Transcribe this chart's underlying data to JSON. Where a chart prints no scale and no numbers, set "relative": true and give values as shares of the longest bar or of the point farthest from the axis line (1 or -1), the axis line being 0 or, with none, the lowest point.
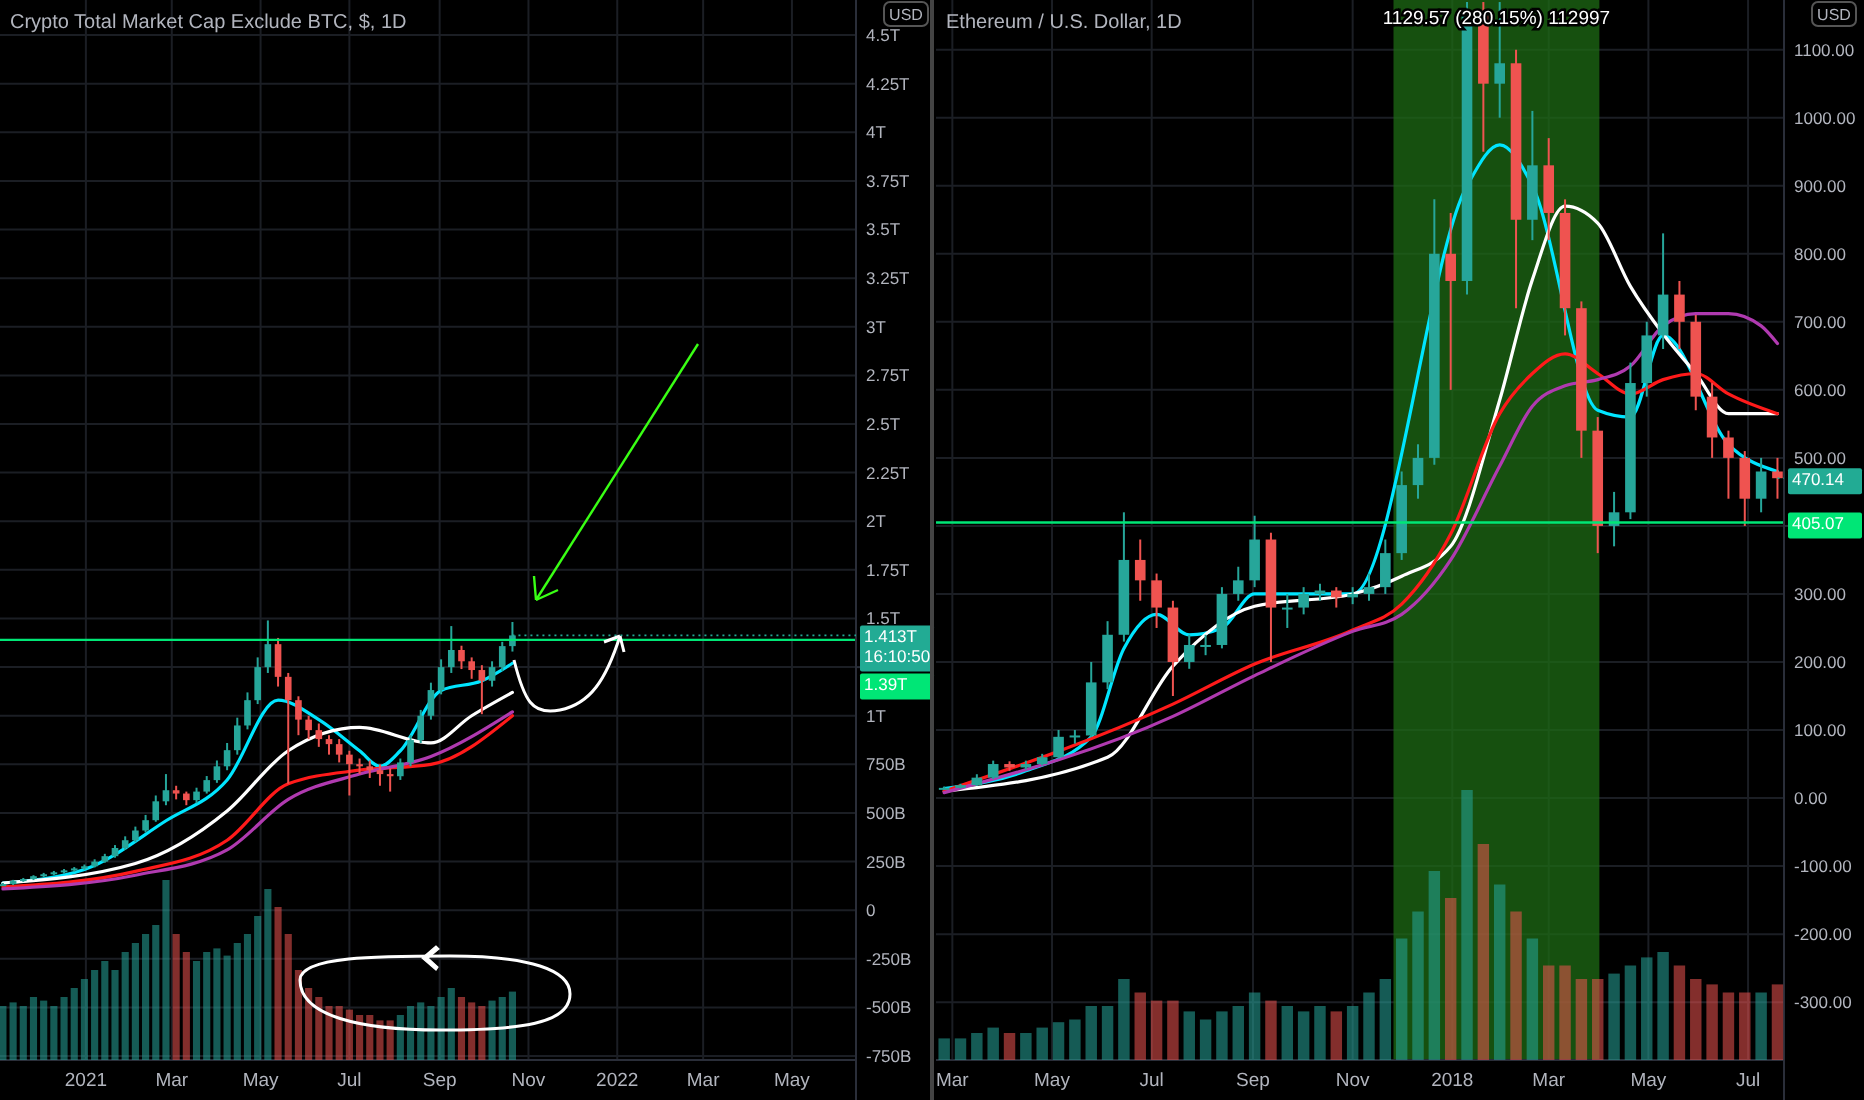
{
  "chart_data": [
    {
      "type": "candlestick",
      "title": "Crypto Total Market Cap Exclude BTC, $, 1D",
      "x": [
        "2020-11-05",
        "2020-11-12",
        "2020-11-19",
        "2020-11-26",
        "2020-12-03",
        "2020-12-10",
        "2020-12-17",
        "2020-12-24",
        "2020-12-31",
        "2021-01-07",
        "2021-01-14",
        "2021-01-21",
        "2021-01-28",
        "2021-02-04",
        "2021-02-11",
        "2021-02-18",
        "2021-02-25",
        "2021-03-04",
        "2021-03-11",
        "2021-03-18",
        "2021-03-25",
        "2021-04-01",
        "2021-04-08",
        "2021-04-15",
        "2021-04-22",
        "2021-04-29",
        "2021-05-06",
        "2021-05-13",
        "2021-05-20",
        "2021-05-27",
        "2021-06-03",
        "2021-06-10",
        "2021-06-17",
        "2021-06-24",
        "2021-07-01",
        "2021-07-08",
        "2021-07-15",
        "2021-07-22",
        "2021-07-29",
        "2021-08-05",
        "2021-08-12",
        "2021-08-19",
        "2021-08-26",
        "2021-09-02",
        "2021-09-09",
        "2021-09-16",
        "2021-09-23",
        "2021-09-30",
        "2021-10-07",
        "2021-10-14",
        "2021-10-21"
      ],
      "ohlc": [
        [
          130000000000.0,
          140000000000.0,
          125000000000.0,
          134000000000.0
        ],
        [
          134000000000.0,
          156000000000.0,
          130000000000.0,
          150000000000.0
        ],
        [
          150000000000.0,
          166000000000.0,
          146000000000.0,
          160000000000.0
        ],
        [
          160000000000.0,
          180000000000.0,
          155000000000.0,
          175000000000.0
        ],
        [
          175000000000.0,
          192000000000.0,
          170000000000.0,
          185000000000.0
        ],
        [
          185000000000.0,
          202000000000.0,
          180000000000.0,
          195000000000.0
        ],
        [
          195000000000.0,
          212000000000.0,
          188000000000.0,
          205000000000.0
        ],
        [
          205000000000.0,
          222000000000.0,
          198000000000.0,
          215000000000.0
        ],
        [
          215000000000.0,
          235000000000.0,
          208000000000.0,
          226000000000.0
        ],
        [
          226000000000.0,
          262000000000.0,
          220000000000.0,
          250000000000.0
        ],
        [
          250000000000.0,
          290000000000.0,
          244000000000.0,
          278000000000.0
        ],
        [
          278000000000.0,
          335000000000.0,
          270000000000.0,
          320000000000.0
        ],
        [
          320000000000.0,
          380000000000.0,
          310000000000.0,
          360000000000.0
        ],
        [
          360000000000.0,
          430000000000.0,
          350000000000.0,
          410000000000.0
        ],
        [
          410000000000.0,
          490000000000.0,
          400000000000.0,
          463000000000.0
        ],
        [
          463000000000.0,
          590000000000.0,
          455000000000.0,
          560000000000.0
        ],
        [
          560000000000.0,
          700000000000.0,
          540000000000.0,
          617000000000.0
        ],
        [
          617000000000.0,
          640000000000.0,
          570000000000.0,
          600000000000.0
        ],
        [
          600000000000.0,
          610000000000.0,
          540000000000.0,
          566000000000.0
        ],
        [
          566000000000.0,
          630000000000.0,
          550000000000.0,
          610000000000.0
        ],
        [
          610000000000.0,
          690000000000.0,
          600000000000.0,
          669000000000.0
        ],
        [
          669000000000.0,
          770000000000.0,
          655000000000.0,
          740000000000.0
        ],
        [
          740000000000.0,
          860000000000.0,
          720000000000.0,
          823000000000.0
        ],
        [
          823000000000.0,
          990000000000.0,
          800000000000.0,
          950000000000.0
        ],
        [
          950000000000.0,
          1120000000000.0,
          930000000000.0,
          1080000000000.0
        ],
        [
          1080000000000.0,
          1300000000000.0,
          1060000000000.0,
          1250000000000.0
        ],
        [
          1250000000000.0,
          1490000000000.0,
          1220000000000.0,
          1368000000000.0
        ],
        [
          1368000000000.0,
          1400000000000.0,
          1150000000000.0,
          1200000000000.0
        ],
        [
          1200000000000.0,
          1220000000000.0,
          650000000000.0,
          1080000000000.0
        ],
        [
          1080000000000.0,
          1100000000000.0,
          900000000000.0,
          980000000000.0
        ],
        [
          980000000000.0,
          1000000000000.0,
          880000000000.0,
          926000000000.0
        ],
        [
          926000000000.0,
          960000000000.0,
          840000000000.0,
          880000000000.0
        ],
        [
          880000000000.0,
          900000000000.0,
          800000000000.0,
          854000000000.0
        ],
        [
          854000000000.0,
          880000000000.0,
          760000000000.0,
          800000000000.0
        ],
        [
          800000000000.0,
          820000000000.0,
          590000000000.0,
          751000000000.0
        ],
        [
          751000000000.0,
          780000000000.0,
          700000000000.0,
          740000000000.0
        ],
        [
          740000000000.0,
          770000000000.0,
          680000000000.0,
          720000000000.0
        ],
        [
          720000000000.0,
          750000000000.0,
          640000000000.0,
          700000000000.0
        ],
        [
          700000000000.0,
          730000000000.0,
          610000000000.0,
          689000000000.0
        ],
        [
          689000000000.0,
          780000000000.0,
          670000000000.0,
          760000000000.0
        ],
        [
          760000000000.0,
          900000000000.0,
          740000000000.0,
          875000000000.0
        ],
        [
          875000000000.0,
          1030000000000.0,
          860000000000.0,
          1000000000000.0
        ],
        [
          1000000000000.0,
          1170000000000.0,
          980000000000.0,
          1132000000000.0
        ],
        [
          1132000000000.0,
          1290000000000.0,
          1110000000000.0,
          1250000000000.0
        ],
        [
          1250000000000.0,
          1461000000000.0,
          1220000000000.0,
          1338000000000.0
        ],
        [
          1338000000000.0,
          1360000000000.0,
          1240000000000.0,
          1280000000000.0
        ],
        [
          1280000000000.0,
          1300000000000.0,
          1190000000000.0,
          1235000000000.0
        ],
        [
          1235000000000.0,
          1260000000000.0,
          1008000000000.0,
          1180000000000.0
        ],
        [
          1180000000000.0,
          1280000000000.0,
          1150000000000.0,
          1250000000000.0
        ],
        [
          1250000000000.0,
          1380000000000.0,
          1230000000000.0,
          1358000000000.0
        ],
        [
          1358000000000.0,
          1482000000000.0,
          1330000000000.0,
          1413000000000.0
        ]
      ],
      "colors": [
        "#26a69a",
        "#26a69a",
        "#26a69a",
        "#26a69a",
        "#26a69a",
        "#26a69a",
        "#26a69a",
        "#26a69a",
        "#26a69a",
        "#26a69a",
        "#26a69a",
        "#26a69a",
        "#26a69a",
        "#26a69a",
        "#26a69a",
        "#26a69a",
        "#26a69a",
        "#ef5350",
        "#ef5350",
        "#26a69a",
        "#26a69a",
        "#26a69a",
        "#26a69a",
        "#26a69a",
        "#26a69a",
        "#26a69a",
        "#26a69a",
        "#ef5350",
        "#ef5350",
        "#ef5350",
        "#ef5350",
        "#ef5350",
        "#ef5350",
        "#ef5350",
        "#ef5350",
        "#ef5350",
        "#ef5350",
        "#ef5350",
        "#ef5350",
        "#26a69a",
        "#26a69a",
        "#26a69a",
        "#26a69a",
        "#26a69a",
        "#26a69a",
        "#ef5350",
        "#ef5350",
        "#ef5350",
        "#26a69a",
        "#26a69a",
        "#26a69a"
      ],
      "series": [
        {
          "type": "line",
          "color": "#00e5ff",
          "x": [
            "2020-11-05",
            "2020-12-31",
            "2021-02-25",
            "2021-04-08",
            "2021-05-13",
            "2021-06-10",
            "2021-07-08",
            "2021-07-22",
            "2021-08-05",
            "2021-09-02",
            "2021-09-30",
            "2021-10-21"
          ],
          "values": [
            140000000000.0,
            210000000000.0,
            460000000000.0,
            670000000000.0,
            1080000000000.0,
            980000000000.0,
            820000000000.0,
            740000000000.0,
            820000000000.0,
            1130000000000.0,
            1180000000000.0,
            1270000000000.0
          ]
        },
        {
          "type": "line",
          "color": "#ffffff",
          "x": [
            "2020-11-05",
            "2021-02-04",
            "2021-04-08",
            "2021-05-20",
            "2021-07-08",
            "2021-08-26",
            "2021-09-23",
            "2021-10-21"
          ],
          "values": [
            140000000000.0,
            240000000000.0,
            510000000000.0,
            820000000000.0,
            940000000000.0,
            860000000000.0,
            1000000000000.0,
            1120000000000.0
          ]
        },
        {
          "type": "line",
          "color": "#ff1a1a",
          "x": [
            "2020-11-05",
            "2021-02-04",
            "2021-04-08",
            "2021-05-20",
            "2021-07-08",
            "2021-08-26",
            "2021-10-21"
          ],
          "values": [
            120000000000.0,
            200000000000.0,
            360000000000.0,
            650000000000.0,
            720000000000.0,
            750000000000.0,
            1000000000000.0
          ]
        },
        {
          "type": "line",
          "color": "#b03ab0",
          "x": [
            "2020-11-05",
            "2021-02-04",
            "2021-04-08",
            "2021-05-20",
            "2021-07-08",
            "2021-08-26",
            "2021-10-21"
          ],
          "values": [
            110000000000.0,
            180000000000.0,
            310000000000.0,
            570000000000.0,
            700000000000.0,
            790000000000.0,
            1020000000000.0
          ]
        }
      ],
      "xlim": [
        "2020-11-03",
        "2022-06-14"
      ],
      "xticks": [
        {
          "value": "2021-01-01",
          "label": "2021"
        },
        {
          "value": "2021-03-01",
          "label": "Mar"
        },
        {
          "value": "2021-05-01",
          "label": "May"
        },
        {
          "value": "2021-07-01",
          "label": "Jul"
        },
        {
          "value": "2021-09-01",
          "label": "Sep"
        },
        {
          "value": "2021-11-01",
          "label": "Nov"
        },
        {
          "value": "2022-01-01",
          "label": "2022"
        },
        {
          "value": "2022-03-01",
          "label": "Mar"
        },
        {
          "value": "2022-05-01",
          "label": "May"
        }
      ],
      "ylim": [
        -770000000000.0,
        4680000000000.0
      ],
      "yticks": [
        {
          "value": 4500000000000.0,
          "label": "4.5T"
        },
        {
          "value": 4250000000000.0,
          "label": "4.25T"
        },
        {
          "value": 4000000000000.0,
          "label": "4T"
        },
        {
          "value": 3750000000000.0,
          "label": "3.75T"
        },
        {
          "value": 3500000000000.0,
          "label": "3.5T"
        },
        {
          "value": 3250000000000.0,
          "label": "3.25T"
        },
        {
          "value": 3000000000000.0,
          "label": "3T"
        },
        {
          "value": 2750000000000.0,
          "label": "2.75T"
        },
        {
          "value": 2500000000000.0,
          "label": "2.5T"
        },
        {
          "value": 2250000000000.0,
          "label": "2.25T"
        },
        {
          "value": 2000000000000.0,
          "label": "2T"
        },
        {
          "value": 1750000000000.0,
          "label": "1.75T"
        },
        {
          "value": 1500000000000.0,
          "label": "1.5T"
        },
        {
          "value": 1250000000000.0,
          "label": null
        },
        {
          "value": 1000000000000.0,
          "label": "1T"
        },
        {
          "value": 750000000000.0,
          "label": "750B"
        },
        {
          "value": 500000000000.0,
          "label": "500B"
        },
        {
          "value": 250000000000.0,
          "label": "250B"
        },
        0,
        {
          "value": -250000000000.0,
          "label": "-250B"
        },
        {
          "value": -500000000000.0,
          "label": "-500B"
        },
        {
          "value": -750000000000.0,
          "label": "-750B"
        }
      ],
      "grid": true,
      "ref_lines": [
        {
          "axis": "y",
          "value": 1390000000000.0,
          "label": "1.39T",
          "color": "#00e676"
        }
      ],
      "annotations": [
        "USD",
        {
          "text": "1.413T",
          "x": "2021-10-21",
          "y": 1413000000000.0
        },
        "16:10:50"
      ]
    },
    {
      "type": "bar",
      "relative": true,
      "x": [
        "2020-11-05",
        "2020-11-12",
        "2020-11-19",
        "2020-11-26",
        "2020-12-03",
        "2020-12-10",
        "2020-12-17",
        "2020-12-24",
        "2020-12-31",
        "2021-01-07",
        "2021-01-14",
        "2021-01-21",
        "2021-01-28",
        "2021-02-04",
        "2021-02-11",
        "2021-02-18",
        "2021-02-25",
        "2021-03-04",
        "2021-03-11",
        "2021-03-18",
        "2021-03-25",
        "2021-04-01",
        "2021-04-08",
        "2021-04-15",
        "2021-04-22",
        "2021-04-29",
        "2021-05-06",
        "2021-05-13",
        "2021-05-20",
        "2021-05-27",
        "2021-06-03",
        "2021-06-10",
        "2021-06-17",
        "2021-06-24",
        "2021-07-01",
        "2021-07-08",
        "2021-07-15",
        "2021-07-22",
        "2021-07-29",
        "2021-08-05",
        "2021-08-12",
        "2021-08-19",
        "2021-08-26",
        "2021-09-02",
        "2021-09-09",
        "2021-09-16",
        "2021-09-23",
        "2021-09-30",
        "2021-10-07",
        "2021-10-14",
        "2021-10-21"
      ],
      "xlim": [
        "2020-11-03",
        "2022-06-14"
      ],
      "values": [
        0.3,
        0.32,
        0.3,
        0.35,
        0.33,
        0.3,
        0.35,
        0.4,
        0.45,
        0.5,
        0.55,
        0.5,
        0.6,
        0.65,
        0.7,
        0.75,
        1,
        0.7,
        0.6,
        0.55,
        0.6,
        0.62,
        0.58,
        0.65,
        0.7,
        0.8,
        0.95,
        0.85,
        0.7,
        0.5,
        0.4,
        0.35,
        0.3,
        0.3,
        0.28,
        0.25,
        0.25,
        0.22,
        0.22,
        0.25,
        0.3,
        0.32,
        0.3,
        0.35,
        0.4,
        0.35,
        0.32,
        0.3,
        0.33,
        0.35,
        0.38
      ],
      "colors": [
        "#26a69a",
        "#26a69a",
        "#26a69a",
        "#26a69a",
        "#26a69a",
        "#26a69a",
        "#26a69a",
        "#26a69a",
        "#26a69a",
        "#26a69a",
        "#26a69a",
        "#26a69a",
        "#26a69a",
        "#26a69a",
        "#26a69a",
        "#26a69a",
        "#26a69a",
        "#ef5350",
        "#ef5350",
        "#26a69a",
        "#26a69a",
        "#26a69a",
        "#26a69a",
        "#26a69a",
        "#26a69a",
        "#26a69a",
        "#26a69a",
        "#ef5350",
        "#ef5350",
        "#ef5350",
        "#ef5350",
        "#ef5350",
        "#ef5350",
        "#ef5350",
        "#ef5350",
        "#ef5350",
        "#ef5350",
        "#ef5350",
        "#ef5350",
        "#26a69a",
        "#26a69a",
        "#26a69a",
        "#26a69a",
        "#26a69a",
        "#26a69a",
        "#ef5350",
        "#ef5350",
        "#ef5350",
        "#26a69a",
        "#26a69a",
        "#26a69a"
      ]
    },
    {
      "type": "candlestick",
      "title": "Ethereum / U.S. Dollar, 1D",
      "x": [
        "2017-02-24",
        "2017-03-06",
        "2017-03-16",
        "2017-03-26",
        "2017-04-05",
        "2017-04-15",
        "2017-04-25",
        "2017-05-05",
        "2017-05-15",
        "2017-05-25",
        "2017-06-04",
        "2017-06-14",
        "2017-06-24",
        "2017-07-04",
        "2017-07-14",
        "2017-07-24",
        "2017-08-03",
        "2017-08-13",
        "2017-08-23",
        "2017-09-02",
        "2017-09-12",
        "2017-09-22",
        "2017-10-02",
        "2017-10-12",
        "2017-10-22",
        "2017-11-01",
        "2017-11-11",
        "2017-11-21",
        "2017-12-01",
        "2017-12-11",
        "2017-12-21",
        "2017-12-31",
        "2018-01-10",
        "2018-01-20",
        "2018-01-30",
        "2018-02-09",
        "2018-02-19",
        "2018-03-01",
        "2018-03-11",
        "2018-03-21",
        "2018-03-31",
        "2018-04-10",
        "2018-04-20",
        "2018-04-30",
        "2018-05-10",
        "2018-05-20",
        "2018-05-30",
        "2018-06-09",
        "2018-06-19",
        "2018-06-29",
        "2018-07-09",
        "2018-07-19"
      ],
      "ohlc": [
        [
          13,
          17,
          12,
          15
        ],
        [
          15,
          21,
          14,
          19
        ],
        [
          19,
          35,
          18,
          30
        ],
        [
          30,
          55,
          28,
          50
        ],
        [
          50,
          54,
          40,
          45
        ],
        [
          45,
          55,
          42,
          50
        ],
        [
          50,
          65,
          48,
          60
        ],
        [
          60,
          100,
          58,
          90
        ],
        [
          90,
          100,
          80,
          92
        ],
        [
          92,
          200,
          90,
          170
        ],
        [
          170,
          260,
          160,
          240
        ],
        [
          240,
          420,
          230,
          350
        ],
        [
          350,
          380,
          290,
          320
        ],
        [
          320,
          330,
          250,
          280
        ],
        [
          280,
          290,
          150,
          200
        ],
        [
          200,
          240,
          190,
          225
        ],
        [
          225,
          240,
          210,
          225
        ],
        [
          225,
          310,
          220,
          300
        ],
        [
          300,
          340,
          290,
          320
        ],
        [
          320,
          415,
          310,
          380
        ],
        [
          380,
          390,
          200,
          280
        ],
        [
          280,
          300,
          250,
          280
        ],
        [
          280,
          310,
          270,
          300
        ],
        [
          300,
          315,
          290,
          305
        ],
        [
          305,
          310,
          280,
          295
        ],
        [
          295,
          310,
          285,
          300
        ],
        [
          300,
          330,
          290,
          310
        ],
        [
          310,
          380,
          300,
          360
        ],
        [
          360,
          480,
          350,
          460
        ],
        [
          460,
          520,
          440,
          500
        ],
        [
          500,
          880,
          490,
          800
        ],
        [
          800,
          860,
          600,
          760
        ],
        [
          760,
          1170,
          740,
          1150
        ],
        [
          1150,
          1170,
          950,
          1050
        ],
        [
          1050,
          1170,
          1000,
          1080
        ],
        [
          1080,
          1100,
          720,
          850
        ],
        [
          850,
          1010,
          820,
          930
        ],
        [
          930,
          970,
          820,
          860
        ],
        [
          860,
          880,
          680,
          720
        ],
        [
          720,
          730,
          500,
          540
        ],
        [
          540,
          560,
          360,
          400
        ],
        [
          400,
          450,
          370,
          420
        ],
        [
          420,
          640,
          410,
          610
        ],
        [
          610,
          700,
          590,
          680
        ],
        [
          680,
          830,
          660,
          740
        ],
        [
          740,
          760,
          660,
          700
        ],
        [
          700,
          710,
          570,
          590
        ],
        [
          590,
          610,
          500,
          530
        ],
        [
          530,
          540,
          440,
          500
        ],
        [
          500,
          510,
          400,
          440
        ],
        [
          440,
          500,
          420,
          480
        ],
        [
          480,
          500,
          440,
          470.14
        ]
      ],
      "colors": [
        "#26a69a",
        "#26a69a",
        "#26a69a",
        "#26a69a",
        "#ef5350",
        "#26a69a",
        "#26a69a",
        "#26a69a",
        "#26a69a",
        "#26a69a",
        "#26a69a",
        "#26a69a",
        "#ef5350",
        "#ef5350",
        "#ef5350",
        "#26a69a",
        "#26a69a",
        "#26a69a",
        "#26a69a",
        "#26a69a",
        "#ef5350",
        "#26a69a",
        "#26a69a",
        "#26a69a",
        "#ef5350",
        "#26a69a",
        "#26a69a",
        "#26a69a",
        "#26a69a",
        "#26a69a",
        "#26a69a",
        "#ef5350",
        "#26a69a",
        "#ef5350",
        "#26a69a",
        "#ef5350",
        "#26a69a",
        "#ef5350",
        "#ef5350",
        "#ef5350",
        "#ef5350",
        "#26a69a",
        "#26a69a",
        "#26a69a",
        "#26a69a",
        "#ef5350",
        "#ef5350",
        "#ef5350",
        "#ef5350",
        "#ef5350",
        "#26a69a",
        "#ef5350"
      ],
      "series": [
        {
          "type": "line",
          "color": "#00e5ff",
          "x": [
            "2017-02-24",
            "2017-04-15",
            "2017-05-25",
            "2017-06-14",
            "2017-07-04",
            "2017-07-24",
            "2017-08-13",
            "2017-09-02",
            "2017-09-22",
            "2017-11-01",
            "2018-01-10",
            "2018-01-30",
            "2018-02-19",
            "2018-03-31",
            "2018-04-20",
            "2018-05-10",
            "2018-06-19",
            "2018-07-19"
          ],
          "values": [
            14,
            40,
            90,
            220,
            270,
            240,
            250,
            300,
            300,
            300,
            900,
            960,
            900,
            570,
            560,
            680,
            520,
            480
          ]
        },
        {
          "type": "line",
          "color": "#ffffff",
          "x": [
            "2017-02-24",
            "2017-06-04",
            "2017-07-14",
            "2017-09-02",
            "2017-11-01",
            "2017-12-01",
            "2017-12-31",
            "2018-01-30",
            "2018-02-19",
            "2018-03-11",
            "2018-03-31",
            "2018-04-20",
            "2018-05-10",
            "2018-05-30",
            "2018-06-19",
            "2018-07-19"
          ],
          "values": [
            10,
            60,
            194,
            282,
            300,
            326,
            370,
            585,
            762,
            870,
            845,
            752,
            682,
            624,
            565,
            565
          ]
        },
        {
          "type": "line",
          "color": "#ff1a1a",
          "x": [
            "2017-02-24",
            "2017-07-14",
            "2017-09-02",
            "2017-11-01",
            "2017-12-01",
            "2017-12-31",
            "2018-01-30",
            "2018-02-19",
            "2018-03-11",
            "2018-03-31",
            "2018-04-20",
            "2018-05-10",
            "2018-05-30",
            "2018-06-19",
            "2018-07-19"
          ],
          "values": [
            10,
            138,
            197,
            247,
            285,
            388,
            565,
            624,
            653,
            624,
            594,
            615,
            624,
            594,
            565
          ]
        },
        {
          "type": "line",
          "color": "#b03ab0",
          "x": [
            "2017-02-24",
            "2017-07-14",
            "2017-09-02",
            "2017-11-01",
            "2017-12-01",
            "2017-12-31",
            "2018-01-30",
            "2018-02-19",
            "2018-03-11",
            "2018-03-31",
            "2018-04-20",
            "2018-05-10",
            "2018-05-30",
            "2018-06-19",
            "2018-07-09",
            "2018-07-19"
          ],
          "values": [
            8,
            120,
            180,
            245,
            270,
            350,
            488,
            576,
            606,
            615,
            635,
            694,
            712,
            712,
            694,
            668
          ]
        }
      ],
      "xlim": [
        "2017-02-19",
        "2018-07-23"
      ],
      "xticks": [
        {
          "value": "2017-03-01",
          "label": "Mar"
        },
        {
          "value": "2017-05-01",
          "label": "May"
        },
        {
          "value": "2017-07-01",
          "label": "Jul"
        },
        {
          "value": "2017-09-01",
          "label": "Sep"
        },
        {
          "value": "2017-11-01",
          "label": "Nov"
        },
        {
          "value": "2018-01-01",
          "label": "2018"
        },
        {
          "value": "2018-03-01",
          "label": "Mar"
        },
        {
          "value": "2018-05-01",
          "label": "May"
        },
        {
          "value": "2018-07-01",
          "label": "Jul"
        }
      ],
      "ylim": [
        -385,
        1173
      ],
      "yticks": [
        {
          "value": 1100,
          "label": "1100.00"
        },
        {
          "value": 1000,
          "label": "1000.00"
        },
        {
          "value": 900,
          "label": "900.00"
        },
        {
          "value": 800,
          "label": "800.00"
        },
        {
          "value": 700,
          "label": "700.00"
        },
        {
          "value": 600,
          "label": "600.00"
        },
        {
          "value": 500,
          "label": "500.00"
        },
        {
          "value": 400,
          "label": null
        },
        {
          "value": 300,
          "label": "300.00"
        },
        {
          "value": 200,
          "label": "200.00"
        },
        {
          "value": 100,
          "label": "100.00"
        },
        {
          "value": 0,
          "label": "0.00"
        },
        {
          "value": -100,
          "label": "-100.00"
        },
        {
          "value": -200,
          "label": "-200.00"
        },
        {
          "value": -300,
          "label": "-300.00"
        }
      ],
      "grid": true,
      "bands": [
        {
          "axis": "x",
          "from": "2017-11-26",
          "to": "2018-04-01",
          "label": "1129.57 (280.15%) 112997",
          "color": "#1e6b14"
        }
      ],
      "ref_lines": [
        {
          "axis": "y",
          "value": 405.07,
          "label": "405.07",
          "color": "#00e676"
        }
      ],
      "annotations": [
        "USD",
        {
          "text": "470.14",
          "x": "2018-07-19",
          "y": 470.14
        }
      ]
    },
    {
      "type": "bar",
      "relative": true,
      "x": [
        "2017-02-24",
        "2017-03-06",
        "2017-03-16",
        "2017-03-26",
        "2017-04-05",
        "2017-04-15",
        "2017-04-25",
        "2017-05-05",
        "2017-05-15",
        "2017-05-25",
        "2017-06-04",
        "2017-06-14",
        "2017-06-24",
        "2017-07-04",
        "2017-07-14",
        "2017-07-24",
        "2017-08-03",
        "2017-08-13",
        "2017-08-23",
        "2017-09-02",
        "2017-09-12",
        "2017-09-22",
        "2017-10-02",
        "2017-10-12",
        "2017-10-22",
        "2017-11-01",
        "2017-11-11",
        "2017-11-21",
        "2017-12-01",
        "2017-12-11",
        "2017-12-21",
        "2017-12-31",
        "2018-01-10",
        "2018-01-20",
        "2018-01-30",
        "2018-02-09",
        "2018-02-19",
        "2018-03-01",
        "2018-03-11",
        "2018-03-21",
        "2018-03-31",
        "2018-04-10",
        "2018-04-20",
        "2018-04-30",
        "2018-05-10",
        "2018-05-20",
        "2018-05-30",
        "2018-06-09",
        "2018-06-19",
        "2018-06-29",
        "2018-07-09",
        "2018-07-19"
      ],
      "xlim": [
        "2017-02-19",
        "2018-07-23"
      ],
      "values": [
        0.08,
        0.08,
        0.1,
        0.12,
        0.1,
        0.1,
        0.12,
        0.14,
        0.15,
        0.2,
        0.2,
        0.3,
        0.25,
        0.22,
        0.22,
        0.18,
        0.15,
        0.18,
        0.2,
        0.25,
        0.22,
        0.2,
        0.18,
        0.2,
        0.18,
        0.2,
        0.25,
        0.3,
        0.45,
        0.55,
        0.7,
        0.6,
        1,
        0.8,
        0.65,
        0.55,
        0.45,
        0.35,
        0.35,
        0.3,
        0.3,
        0.32,
        0.35,
        0.38,
        0.4,
        0.35,
        0.3,
        0.28,
        0.25,
        0.25,
        0.25,
        0.28
      ],
      "colors": [
        "#26a69a",
        "#26a69a",
        "#26a69a",
        "#26a69a",
        "#ef5350",
        "#26a69a",
        "#26a69a",
        "#26a69a",
        "#26a69a",
        "#26a69a",
        "#26a69a",
        "#26a69a",
        "#ef5350",
        "#ef5350",
        "#ef5350",
        "#26a69a",
        "#26a69a",
        "#26a69a",
        "#26a69a",
        "#26a69a",
        "#ef5350",
        "#26a69a",
        "#26a69a",
        "#26a69a",
        "#ef5350",
        "#26a69a",
        "#26a69a",
        "#26a69a",
        "#26a69a",
        "#26a69a",
        "#26a69a",
        "#ef5350",
        "#26a69a",
        "#ef5350",
        "#26a69a",
        "#ef5350",
        "#26a69a",
        "#ef5350",
        "#ef5350",
        "#ef5350",
        "#ef5350",
        "#26a69a",
        "#26a69a",
        "#26a69a",
        "#26a69a",
        "#ef5350",
        "#ef5350",
        "#ef5350",
        "#ef5350",
        "#ef5350",
        "#26a69a",
        "#ef5350"
      ]
    }
  ]
}
